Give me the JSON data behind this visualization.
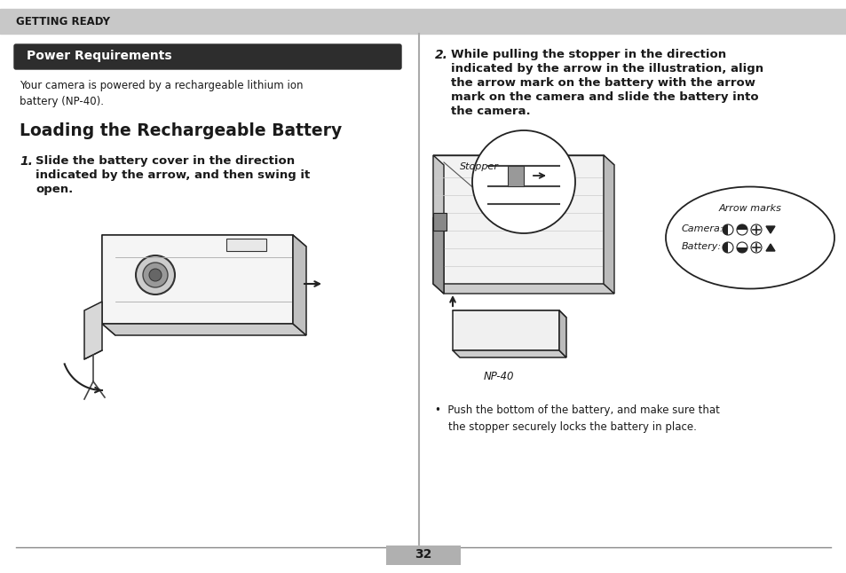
{
  "bg_color": "#ffffff",
  "header_bg": "#c8c8c8",
  "header_text": "GETTING READY",
  "header_text_color": "#1a1a1a",
  "section_title_bg": "#2d2d2d",
  "section_title_text": "Power Requirements",
  "section_title_color": "#ffffff",
  "body_text_1": "Your camera is powered by a rechargeable lithium ion\nbattery (NP-40).",
  "section2_title": "Loading the Rechargeable Battery",
  "bullet_text": "•  Push the bottom of the battery, and make sure that\n    the stopper securely locks the battery in place.",
  "page_number": "32",
  "stopper_label": "Stopper",
  "np40_label": "NP-40",
  "arrow_marks_label": "Arrow marks",
  "camera_label": "Camera:",
  "battery_label": "Battery:"
}
